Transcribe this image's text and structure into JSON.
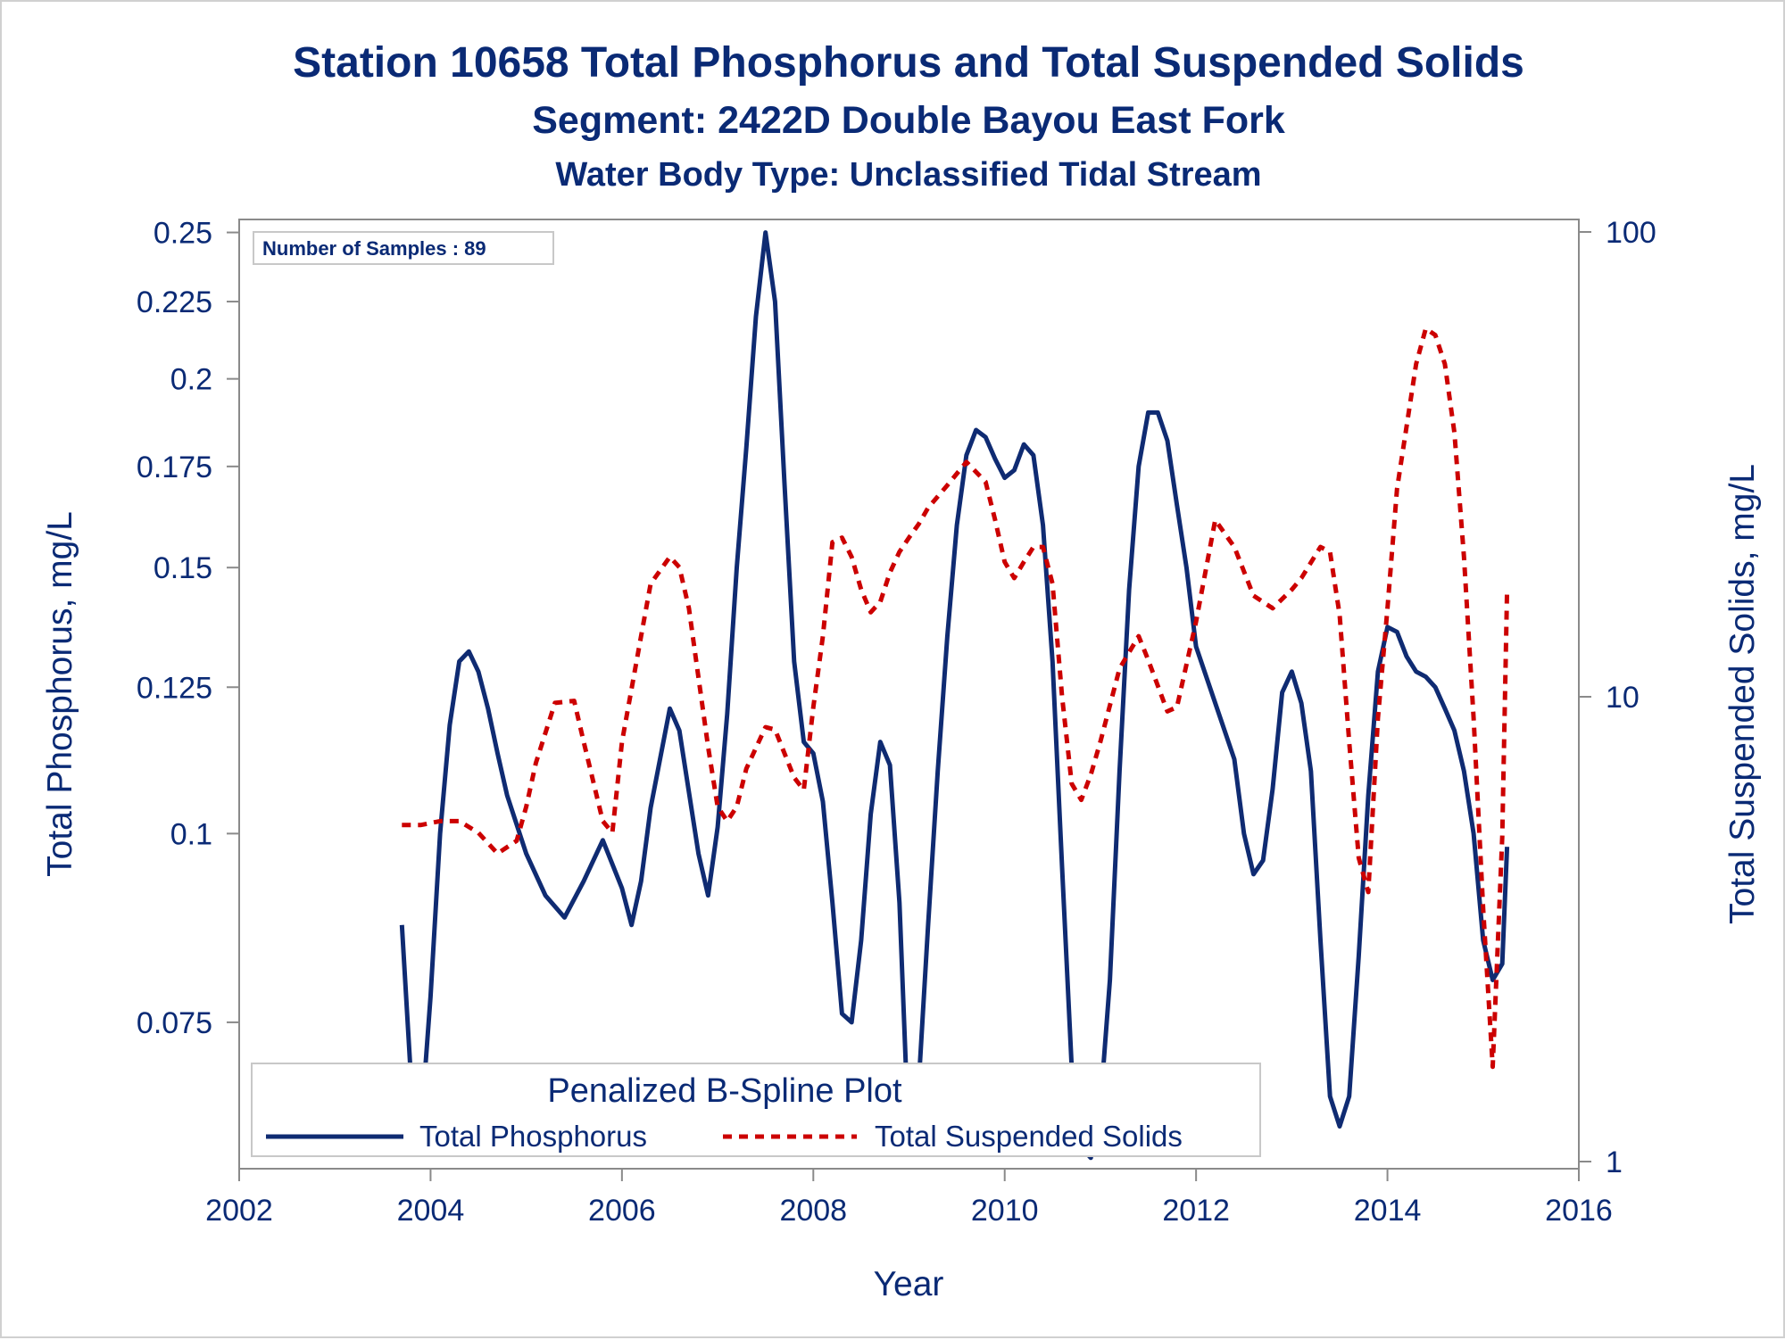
{
  "title": "Station 10658  Total Phosphorus and Total Suspended Solids",
  "subtitle1": "Segment: 2422D  Double Bayou East Fork",
  "subtitle2": "Water Body Type: Unclassified Tidal Stream",
  "inset": "Number of Samples : 89",
  "colors": {
    "text": "#0a2a75",
    "tp": "#0f2b72",
    "tss": "#cc0000",
    "axis": "#8a8a8a"
  },
  "chart_data": {
    "type": "line",
    "xlabel": "Year",
    "ylabel_left": "Total Phosphorus, mg/L",
    "ylabel_right": "Total Suspended Solids, mg/L",
    "xlim": [
      2002,
      2016
    ],
    "ylim_left": [
      0.06,
      0.255
    ],
    "ylim_right": [
      1,
      100
    ],
    "left_scale": "log",
    "right_scale": "log",
    "x_ticks": [
      2002,
      2004,
      2006,
      2008,
      2010,
      2012,
      2014,
      2016
    ],
    "x_tick_labels": [
      "2002",
      "2004",
      "2006",
      "2008",
      "2010",
      "2012",
      "2014",
      "2016"
    ],
    "left_ticks": [
      0.075,
      0.1,
      0.125,
      0.15,
      0.175,
      0.2,
      0.225,
      0.25
    ],
    "left_tick_labels": [
      "0.075",
      "0.1",
      "0.125",
      "0.15",
      "0.175",
      "0.2",
      "0.225",
      "0.25"
    ],
    "right_ticks": [
      1,
      10,
      100
    ],
    "right_tick_labels": [
      "1",
      "10",
      "100"
    ],
    "legend": {
      "title": "Penalized B-Spline Plot",
      "position": "bottom-inside"
    },
    "series": [
      {
        "name": "Total Phosphorus",
        "axis": "left",
        "style": "solid",
        "x": [
          2003.7,
          2003.8,
          2003.9,
          2004.0,
          2004.1,
          2004.2,
          2004.3,
          2004.4,
          2004.5,
          2004.6,
          2004.7,
          2004.8,
          2005.0,
          2005.2,
          2005.4,
          2005.6,
          2005.8,
          2006.0,
          2006.1,
          2006.2,
          2006.3,
          2006.5,
          2006.6,
          2006.8,
          2006.9,
          2007.0,
          2007.1,
          2007.2,
          2007.3,
          2007.4,
          2007.5,
          2007.6,
          2007.7,
          2007.8,
          2007.9,
          2008.0,
          2008.1,
          2008.2,
          2008.3,
          2008.4,
          2008.5,
          2008.6,
          2008.7,
          2008.8,
          2008.9,
          2009.0,
          2009.1,
          2009.2,
          2009.3,
          2009.4,
          2009.5,
          2009.6,
          2009.7,
          2009.8,
          2009.9,
          2010.0,
          2010.1,
          2010.2,
          2010.3,
          2010.4,
          2010.5,
          2010.6,
          2010.7,
          2010.8,
          2010.9,
          2011.0,
          2011.1,
          2011.2,
          2011.3,
          2011.4,
          2011.5,
          2011.6,
          2011.7,
          2011.8,
          2011.9,
          2012.0,
          2012.2,
          2012.4,
          2012.5,
          2012.6,
          2012.7,
          2012.8,
          2012.9,
          2013.0,
          2013.1,
          2013.2,
          2013.3,
          2013.4,
          2013.5,
          2013.6,
          2013.7,
          2013.8,
          2013.9,
          2014.0,
          2014.1,
          2014.2,
          2014.3,
          2014.4,
          2014.5,
          2014.6,
          2014.7,
          2014.8,
          2014.9,
          2015.0,
          2015.1,
          2015.2,
          2015.25
        ],
        "values": [
          0.087,
          0.068,
          0.064,
          0.078,
          0.1,
          0.118,
          0.13,
          0.132,
          0.128,
          0.121,
          0.113,
          0.106,
          0.097,
          0.091,
          0.088,
          0.093,
          0.099,
          0.092,
          0.087,
          0.093,
          0.104,
          0.121,
          0.117,
          0.097,
          0.091,
          0.101,
          0.12,
          0.15,
          0.18,
          0.22,
          0.25,
          0.225,
          0.17,
          0.13,
          0.115,
          0.113,
          0.105,
          0.09,
          0.076,
          0.075,
          0.085,
          0.103,
          0.115,
          0.111,
          0.09,
          0.062,
          0.068,
          0.087,
          0.11,
          0.135,
          0.16,
          0.178,
          0.185,
          0.183,
          0.177,
          0.172,
          0.174,
          0.181,
          0.178,
          0.16,
          0.13,
          0.095,
          0.07,
          0.062,
          0.061,
          0.066,
          0.08,
          0.11,
          0.145,
          0.175,
          0.19,
          0.19,
          0.182,
          0.165,
          0.15,
          0.133,
          0.122,
          0.112,
          0.1,
          0.094,
          0.096,
          0.107,
          0.124,
          0.128,
          0.122,
          0.11,
          0.085,
          0.067,
          0.064,
          0.067,
          0.083,
          0.106,
          0.128,
          0.137,
          0.136,
          0.131,
          0.128,
          0.127,
          0.125,
          0.121,
          0.117,
          0.11,
          0.1,
          0.085,
          0.08,
          0.082,
          0.098
        ]
      },
      {
        "name": "Total Suspended Solids",
        "axis": "right",
        "style": "dashed",
        "x": [
          2003.7,
          2003.9,
          2004.1,
          2004.3,
          2004.5,
          2004.7,
          2004.9,
          2005.0,
          2005.1,
          2005.3,
          2005.5,
          2005.6,
          2005.8,
          2005.9,
          2006.0,
          2006.2,
          2006.3,
          2006.5,
          2006.6,
          2006.7,
          2006.8,
          2006.9,
          2007.0,
          2007.1,
          2007.2,
          2007.3,
          2007.5,
          2007.6,
          2007.8,
          2007.9,
          2008.0,
          2008.1,
          2008.2,
          2008.3,
          2008.4,
          2008.5,
          2008.6,
          2008.7,
          2008.8,
          2008.9,
          2009.0,
          2009.1,
          2009.2,
          2009.4,
          2009.6,
          2009.8,
          2009.9,
          2010.0,
          2010.1,
          2010.2,
          2010.3,
          2010.4,
          2010.5,
          2010.6,
          2010.7,
          2010.8,
          2010.9,
          2011.0,
          2011.2,
          2011.4,
          2011.5,
          2011.7,
          2011.8,
          2012.0,
          2012.2,
          2012.4,
          2012.6,
          2012.8,
          2013.0,
          2013.1,
          2013.3,
          2013.4,
          2013.5,
          2013.6,
          2013.7,
          2013.8,
          2013.9,
          2014.0,
          2014.1,
          2014.3,
          2014.4,
          2014.5,
          2014.6,
          2014.7,
          2014.8,
          2014.9,
          2015.0,
          2015.1,
          2015.2,
          2015.25
        ],
        "values": [
          5.3,
          5.3,
          5.4,
          5.4,
          5.1,
          4.6,
          4.9,
          5.8,
          7.2,
          9.7,
          9.8,
          8.0,
          5.4,
          5.1,
          8.0,
          13.5,
          17.5,
          20.0,
          19.0,
          15.5,
          11.0,
          7.8,
          5.8,
          5.4,
          5.8,
          7.0,
          8.6,
          8.5,
          6.7,
          6.3,
          9.5,
          13.5,
          21.5,
          22.0,
          20.0,
          17.0,
          15.2,
          16.0,
          18.5,
          20.5,
          22.0,
          23.5,
          25.5,
          28.5,
          32.0,
          29.0,
          24.0,
          19.5,
          18.0,
          19.5,
          21.0,
          21.0,
          17.5,
          10.0,
          6.5,
          6.0,
          6.8,
          8.0,
          11.5,
          13.5,
          12.0,
          9.3,
          9.5,
          14.5,
          24.0,
          21.0,
          16.5,
          15.5,
          17.0,
          18.0,
          21.0,
          20.5,
          15.0,
          8.0,
          4.5,
          3.8,
          9.0,
          15.5,
          28.0,
          52.0,
          62.0,
          60.0,
          52.0,
          37.0,
          20.0,
          9.0,
          3.5,
          1.6,
          5.0,
          17.0
        ]
      }
    ]
  }
}
